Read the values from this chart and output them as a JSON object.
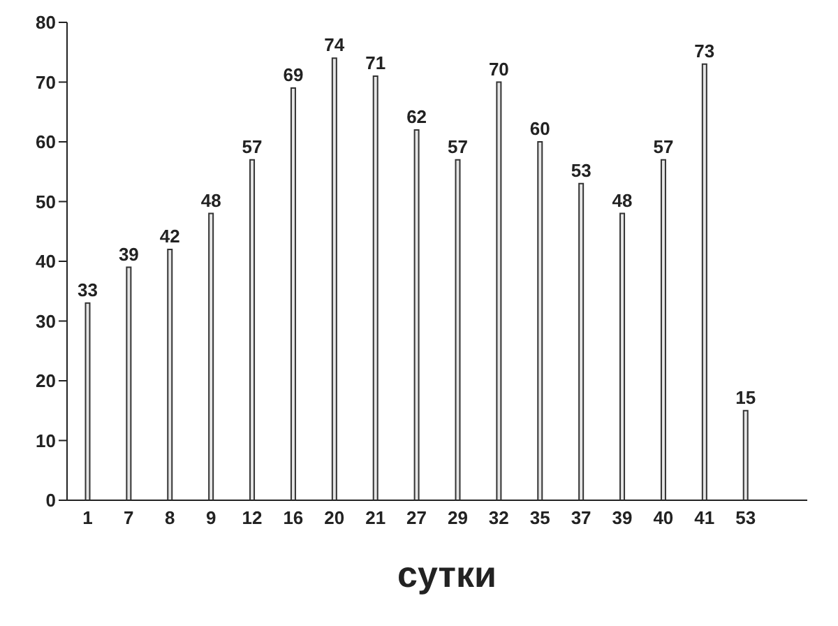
{
  "chart_data": {
    "type": "bar",
    "xlabel": "сутки",
    "categories": [
      "1",
      "7",
      "8",
      "9",
      "12",
      "16",
      "20",
      "21",
      "27",
      "29",
      "32",
      "35",
      "37",
      "39",
      "40",
      "41",
      "53",
      null
    ],
    "values": [
      33,
      39,
      42,
      48,
      57,
      69,
      74,
      71,
      62,
      57,
      70,
      60,
      53,
      48,
      57,
      73,
      15,
      null
    ],
    "color": "#e6e6e6",
    "ylim": [
      0,
      80
    ],
    "yticks": [
      0,
      10,
      20,
      30,
      40,
      50,
      60,
      70,
      80
    ],
    "grid": false,
    "data_labels": true
  }
}
